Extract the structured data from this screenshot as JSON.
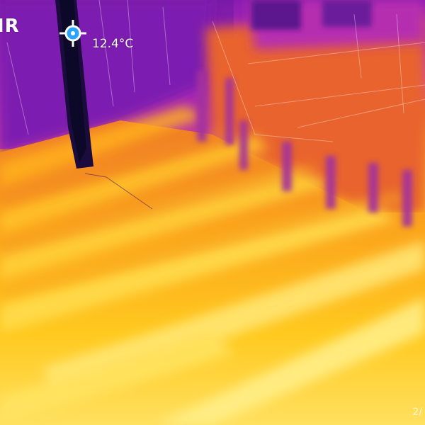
{
  "camera": {
    "brand_logo": "IR",
    "spot_meter": {
      "label": "12.4°C",
      "icon": "crosshair-spot-icon",
      "color": "#2aa3ff"
    },
    "corner_text": "2/"
  },
  "palette": {
    "coldest": "#1a0a3a",
    "cold": "#7a1ea8",
    "mid": "#e86a2a",
    "warm": "#ffb21f",
    "hottest": "#fff18a"
  }
}
